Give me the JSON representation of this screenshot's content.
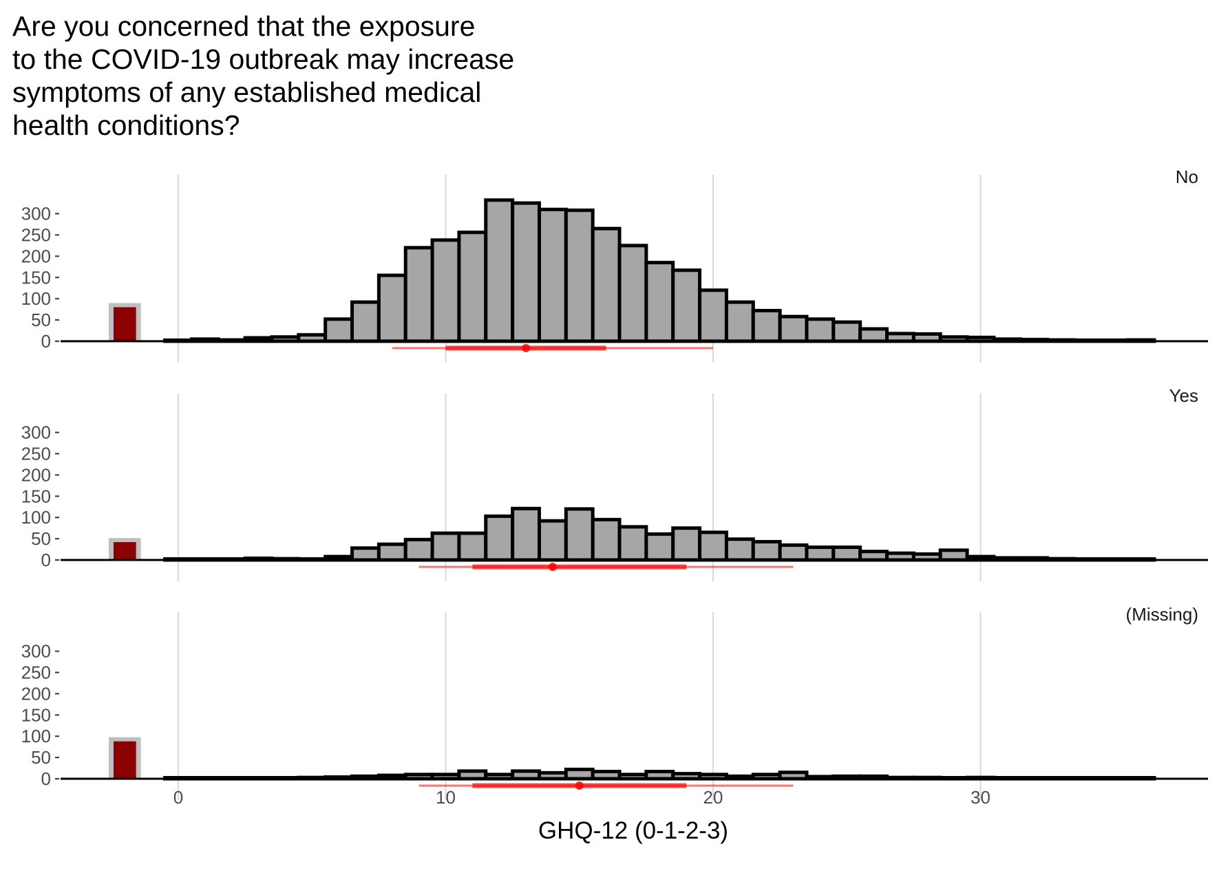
{
  "chart_data": {
    "type": "histogram",
    "title": "Are you concerned that the exposure\nto the COVID-19 outbreak may increase\nsymptoms of any established medical\nhealth conditions?",
    "xlabel": "GHQ-12 (0-1-2-3)",
    "ylabel": "",
    "x_ticks": [
      0,
      10,
      20,
      30
    ],
    "y_ticks": [
      0,
      50,
      100,
      150,
      200,
      250,
      300
    ],
    "xlim": [
      -4.5,
      38
    ],
    "ylim": [
      0,
      335
    ],
    "bin_width": 1,
    "missing_bar_x": -2,
    "bins_x": [
      0,
      1,
      2,
      3,
      4,
      5,
      6,
      7,
      8,
      9,
      10,
      11,
      12,
      13,
      14,
      15,
      16,
      17,
      18,
      19,
      20,
      21,
      22,
      23,
      24,
      25,
      26,
      27,
      28,
      29,
      30,
      31,
      32,
      33,
      34,
      35,
      36
    ],
    "colors": {
      "bar_fill": "#a6a6a6",
      "bar_stroke": "#000000",
      "missing_fill": "#8b0000",
      "missing_bg": "#bfbfbf",
      "summary": "#ff0000",
      "grid": "#d9d9d9"
    },
    "panels": [
      {
        "label": "No",
        "missing_count": 80,
        "counts": [
          1,
          5,
          3,
          8,
          10,
          15,
          52,
          92,
          155,
          220,
          238,
          256,
          332,
          325,
          310,
          308,
          265,
          225,
          185,
          167,
          120,
          92,
          72,
          58,
          52,
          45,
          29,
          18,
          17,
          10,
          9,
          5,
          4,
          3,
          2,
          2,
          3
        ],
        "summary": {
          "median": 13,
          "q1": 10,
          "q3": 16,
          "low": 8,
          "high": 20
        }
      },
      {
        "label": "Yes",
        "missing_count": 42,
        "counts": [
          2,
          2,
          2,
          4,
          3,
          2,
          8,
          28,
          37,
          48,
          63,
          63,
          103,
          121,
          92,
          120,
          95,
          78,
          61,
          75,
          65,
          49,
          43,
          35,
          30,
          30,
          20,
          16,
          14,
          23,
          8,
          5,
          5,
          3,
          2,
          2,
          2
        ],
        "summary": {
          "median": 14,
          "q1": 11,
          "q3": 19,
          "low": 9,
          "high": 23
        }
      },
      {
        "label": "(Missing)",
        "missing_count": 88,
        "counts": [
          0,
          1,
          1,
          1,
          2,
          3,
          4,
          6,
          8,
          10,
          10,
          18,
          10,
          18,
          14,
          22,
          17,
          10,
          17,
          12,
          10,
          6,
          10,
          15,
          5,
          6,
          6,
          3,
          3,
          2,
          3,
          2,
          2,
          2,
          2,
          1,
          2
        ],
        "summary": {
          "median": 15,
          "q1": 11,
          "q3": 19,
          "low": 9,
          "high": 23
        }
      }
    ]
  }
}
